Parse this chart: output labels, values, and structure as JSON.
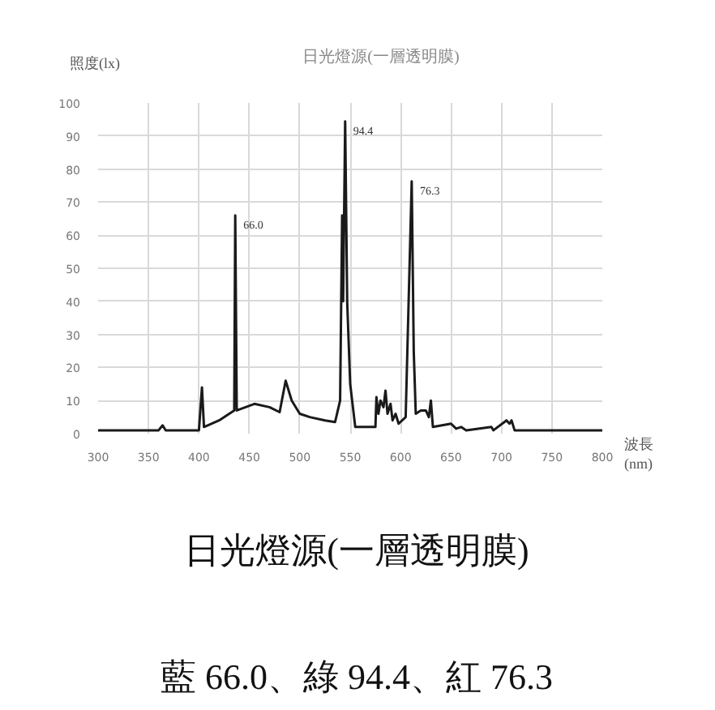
{
  "chart_data": {
    "type": "line",
    "title": "日光燈源(一層透明膜)",
    "ylabel": "照度(lx)",
    "xlabel": "波長\n(nm)",
    "x": [
      300,
      360,
      364,
      367,
      400,
      403,
      405,
      420,
      435,
      436,
      437.5,
      455,
      470,
      480,
      486,
      492,
      500,
      510,
      525,
      535,
      540,
      542,
      543,
      545,
      547,
      550,
      555,
      575,
      576,
      578,
      580,
      583,
      585,
      587,
      590,
      592,
      595,
      598,
      605,
      611,
      613,
      615,
      620,
      625,
      628,
      630,
      632,
      650,
      655,
      660,
      665,
      690,
      692,
      705,
      708,
      710,
      713,
      750,
      800
    ],
    "series": [
      {
        "color": "#1a1a1a",
        "values": [
          1,
          1,
          2.5,
          1,
          1,
          14,
          2,
          4,
          7,
          66.0,
          7,
          9,
          8,
          6.5,
          16,
          10,
          6,
          5,
          4,
          3.5,
          10,
          66,
          40,
          94.4,
          40,
          15,
          2,
          2,
          11,
          6,
          10,
          8,
          13,
          6,
          9,
          4,
          6,
          3,
          5,
          76.3,
          25,
          6,
          7,
          7,
          5,
          10,
          2,
          3,
          1.5,
          2,
          1,
          2,
          1,
          4,
          3,
          4,
          1,
          1,
          1
        ]
      }
    ],
    "xlim": [
      300,
      800
    ],
    "ylim": [
      0,
      100
    ],
    "xticks": [
      300,
      350,
      400,
      450,
      500,
      550,
      600,
      650,
      700,
      750,
      800
    ],
    "yticks": [
      0,
      10,
      20,
      30,
      40,
      50,
      60,
      70,
      80,
      90,
      100
    ],
    "grid": true,
    "annotations": [
      {
        "text": "66.0",
        "x": 436,
        "y": 66.0
      },
      {
        "text": "94.4",
        "x": 545,
        "y": 94.4
      },
      {
        "text": "76.3",
        "x": 611,
        "y": 76.3
      },
      "日光燈源(一層透明膜)",
      "藍 66.0、綠 94.4、紅 76.3"
    ]
  }
}
